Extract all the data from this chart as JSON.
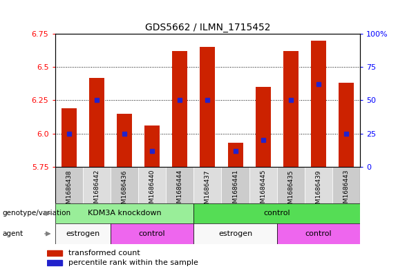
{
  "title": "GDS5662 / ILMN_1715452",
  "samples": [
    "GSM1686438",
    "GSM1686442",
    "GSM1686436",
    "GSM1686440",
    "GSM1686444",
    "GSM1686437",
    "GSM1686441",
    "GSM1686445",
    "GSM1686435",
    "GSM1686439",
    "GSM1686443"
  ],
  "transformed_count": [
    6.19,
    6.42,
    6.15,
    6.06,
    6.62,
    6.65,
    5.93,
    6.35,
    6.62,
    6.7,
    6.38
  ],
  "percentile_rank": [
    25,
    50,
    25,
    12,
    50,
    50,
    12,
    20,
    50,
    62,
    25
  ],
  "ylim": [
    5.75,
    6.75
  ],
  "yticks_left": [
    5.75,
    6.0,
    6.25,
    6.5,
    6.75
  ],
  "yticks_right": [
    0,
    25,
    50,
    75,
    100
  ],
  "bar_color": "#cc2200",
  "dot_color": "#2222cc",
  "genotype_groups": [
    {
      "label": "KDM3A knockdown",
      "start": 0,
      "end": 5,
      "color": "#99ee99"
    },
    {
      "label": "control",
      "start": 5,
      "end": 11,
      "color": "#55dd55"
    }
  ],
  "agent_groups": [
    {
      "label": "estrogen",
      "start": 0,
      "end": 2,
      "color": "#f8f8f8"
    },
    {
      "label": "control",
      "start": 2,
      "end": 5,
      "color": "#ee66ee"
    },
    {
      "label": "estrogen",
      "start": 5,
      "end": 8,
      "color": "#f8f8f8"
    },
    {
      "label": "control",
      "start": 8,
      "end": 11,
      "color": "#ee66ee"
    }
  ],
  "legend_items": [
    {
      "label": "transformed count",
      "color": "#cc2200"
    },
    {
      "label": "percentile rank within the sample",
      "color": "#2222cc"
    }
  ],
  "sample_bg_odd": "#cccccc",
  "sample_bg_even": "#dddddd"
}
